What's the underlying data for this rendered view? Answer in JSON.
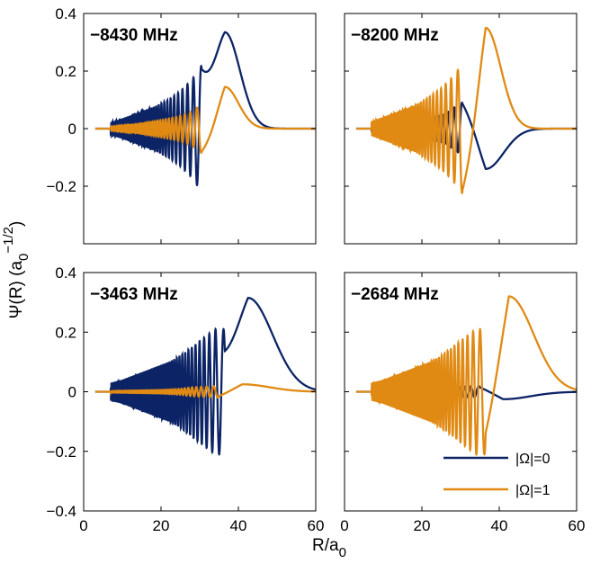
{
  "colors": {
    "omega0": "#0c2466",
    "omega1": "#e08a14",
    "frame": "#000000"
  },
  "legend": {
    "placement": "bottom-right of lower-right panel",
    "entries": [
      {
        "label": "|Ω|=0",
        "color": "#0c2466"
      },
      {
        "label": "|Ω|=1",
        "color": "#e08a14"
      }
    ]
  },
  "chart_data": {
    "type": "line",
    "layout": "2x2 grid, shared axes",
    "xlabel_base": "R/a",
    "xlabel_sub": "0",
    "ylabel_main": "Ψ(R) (a",
    "ylabel_sub": "0",
    "ylabel_sup": "−1/2",
    "ylabel_close": ")",
    "xlim": [
      0,
      60
    ],
    "ylim": [
      -0.4,
      0.4
    ],
    "xticks": [
      0,
      20,
      40,
      60
    ],
    "xtick_labels": [
      "0",
      "20",
      "40",
      "60"
    ],
    "yticks": [
      -0.4,
      -0.2,
      0,
      0.2,
      0.4
    ],
    "ytick_labels": [
      "−0.4",
      "−0.2",
      "0",
      "0.2",
      "0.4"
    ],
    "panels": [
      {
        "title": "−8430 MHz",
        "series": [
          {
            "name": "|Ω|=0",
            "start": 7.0,
            "envelope": [
              [
                7,
                0.022
              ],
              [
                10,
                0.035
              ],
              [
                14,
                0.055
              ],
              [
                18,
                0.075
              ],
              [
                22,
                0.1
              ],
              [
                25,
                0.13
              ],
              [
                28,
                0.17
              ],
              [
                31,
                0.23
              ],
              [
                33,
                0.26
              ]
            ],
            "tail_peak": [
              36.5,
              0.335
            ],
            "tail_width": 5.5
          },
          {
            "name": "|Ω|=1",
            "start": 7.0,
            "envelope": [
              [
                7,
                0.006
              ],
              [
                10,
                0.01
              ],
              [
                14,
                0.015
              ],
              [
                18,
                0.025
              ],
              [
                22,
                0.035
              ],
              [
                25,
                0.045
              ],
              [
                28,
                0.06
              ],
              [
                30,
                0.08
              ],
              [
                32,
                0.1
              ],
              [
                33,
                0.1
              ]
            ],
            "tail_peak": [
              36.5,
              0.145
            ],
            "tail_width": 5.0
          }
        ]
      },
      {
        "title": "−8200 MHz",
        "series": [
          {
            "name": "|Ω|=0",
            "start": 7.0,
            "envelope": [
              [
                7,
                0.01
              ],
              [
                12,
                0.015
              ],
              [
                18,
                0.025
              ],
              [
                22,
                0.035
              ],
              [
                26,
                0.05
              ],
              [
                29,
                0.08
              ],
              [
                31,
                0.095
              ],
              [
                32.5,
                0.1
              ]
            ],
            "tail_peak": [
              36.5,
              -0.14
            ],
            "tail_width": 6.5
          },
          {
            "name": "|Ω|=1",
            "start": 7.0,
            "envelope": [
              [
                7,
                0.025
              ],
              [
                10,
                0.04
              ],
              [
                14,
                0.06
              ],
              [
                18,
                0.08
              ],
              [
                22,
                0.11
              ],
              [
                25,
                0.14
              ],
              [
                28,
                0.18
              ],
              [
                31,
                0.235
              ],
              [
                33,
                0.25
              ]
            ],
            "tail_peak": [
              36.5,
              0.35
            ],
            "tail_width": 5.5
          }
        ]
      },
      {
        "title": "−3463 MHz",
        "series": [
          {
            "name": "|Ω|=0",
            "start": 7.0,
            "envelope": [
              [
                7,
                0.03
              ],
              [
                10,
                0.04
              ],
              [
                14,
                0.06
              ],
              [
                18,
                0.08
              ],
              [
                22,
                0.1
              ],
              [
                25,
                0.12
              ],
              [
                28,
                0.15
              ],
              [
                31,
                0.18
              ],
              [
                34,
                0.21
              ],
              [
                36,
                0.21
              ]
            ],
            "tail_peak": [
              42.5,
              0.315
            ],
            "tail_width": 9.0
          },
          {
            "name": "|Ω|=1",
            "start": 7.0,
            "envelope": [
              [
                7,
                0.002
              ],
              [
                14,
                0.004
              ],
              [
                20,
                0.006
              ],
              [
                25,
                0.01
              ],
              [
                28,
                0.015
              ],
              [
                32,
                0.018
              ],
              [
                36,
                0.02
              ]
            ],
            "tail_peak": [
              41.0,
              0.025
            ],
            "tail_width": 10.0
          }
        ]
      },
      {
        "title": "−2684 MHz",
        "series": [
          {
            "name": "|Ω|=0",
            "start": 7.0,
            "envelope": [
              [
                7,
                0.002
              ],
              [
                14,
                0.004
              ],
              [
                20,
                0.006
              ],
              [
                25,
                0.01
              ],
              [
                28,
                0.015
              ],
              [
                32,
                0.018
              ],
              [
                36,
                0.02
              ]
            ],
            "tail_peak": [
              41.0,
              -0.025
            ],
            "tail_width": 10.0
          },
          {
            "name": "|Ω|=1",
            "start": 7.0,
            "envelope": [
              [
                7,
                0.03
              ],
              [
                10,
                0.04
              ],
              [
                14,
                0.06
              ],
              [
                18,
                0.08
              ],
              [
                22,
                0.1
              ],
              [
                25,
                0.12
              ],
              [
                28,
                0.15
              ],
              [
                31,
                0.18
              ],
              [
                34,
                0.21
              ],
              [
                36,
                0.21
              ]
            ],
            "tail_peak": [
              42.5,
              0.32
            ],
            "tail_width": 9.0
          }
        ]
      }
    ]
  }
}
